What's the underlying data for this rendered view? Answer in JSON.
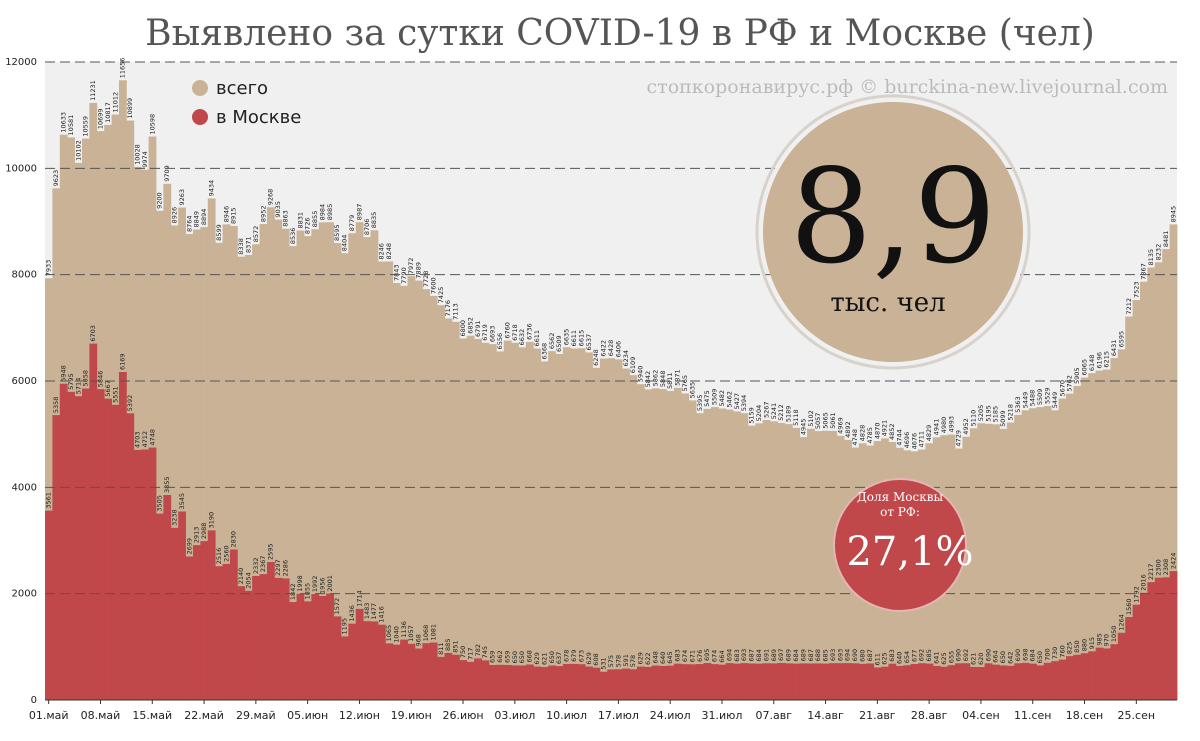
{
  "chart_data": {
    "type": "bar",
    "title": "Выявлено за сутки COVID-19 в РФ и Москве (чел)",
    "watermark": "стопкоронавирус.рф © burckina-new.livejournal.com",
    "categories": [
      "01.май",
      null,
      null,
      null,
      null,
      null,
      null,
      "08.май",
      null,
      null,
      null,
      null,
      null,
      null,
      "15.май",
      null,
      null,
      null,
      null,
      null,
      null,
      "22.май",
      null,
      null,
      null,
      null,
      null,
      null,
      "29.май",
      null,
      null,
      null,
      null,
      null,
      null,
      "05.июн",
      null,
      null,
      null,
      null,
      null,
      null,
      "12.июн",
      null,
      null,
      null,
      null,
      null,
      null,
      "19.июн",
      null,
      null,
      null,
      null,
      null,
      null,
      "26.июн",
      null,
      null,
      null,
      null,
      null,
      null,
      "03.июл",
      null,
      null,
      null,
      null,
      null,
      null,
      "10.июл",
      null,
      null,
      null,
      null,
      null,
      null,
      "17.июл",
      null,
      null,
      null,
      null,
      null,
      null,
      "24.июл",
      null,
      null,
      null,
      null,
      null,
      null,
      "31.июл",
      null,
      null,
      null,
      null,
      null,
      null,
      "07.авг",
      null,
      null,
      null,
      null,
      null,
      null,
      "14.авг",
      null,
      null,
      null,
      null,
      null,
      null,
      "21.авг",
      null,
      null,
      null,
      null,
      null,
      null,
      "28.авг",
      null,
      null,
      null,
      null,
      null,
      null,
      "04.сен",
      null,
      null,
      null,
      null,
      null,
      null,
      "11.сен",
      null,
      null,
      null,
      null,
      null,
      null,
      "18.сен",
      null,
      null,
      null,
      null,
      null,
      null,
      "25.сен",
      null,
      null,
      null,
      null,
      null
    ],
    "series": [
      {
        "name": "всего",
        "color": "#c9b295",
        "values": [
          7933,
          9623,
          10633,
          10581,
          10102,
          10559,
          11231,
          10699,
          10817,
          11012,
          11656,
          10899,
          10028,
          9974,
          10598,
          9200,
          9709,
          8926,
          9263,
          8764,
          8849,
          8894,
          9434,
          8599,
          8946,
          8915,
          8338,
          8371,
          8572,
          8952,
          9268,
          9035,
          8863,
          8536,
          8831,
          8726,
          8855,
          8984,
          8985,
          8595,
          8404,
          8779,
          8987,
          8706,
          8835,
          8246,
          8248,
          7843,
          7790,
          7972,
          7889,
          7728,
          7600,
          7425,
          7176,
          7113,
          6800,
          6852,
          6791,
          6719,
          6693,
          6556,
          6760,
          6718,
          6632,
          6736,
          6611,
          6368,
          6562,
          6509,
          6635,
          6611,
          6615,
          6537,
          6248,
          6422,
          6428,
          6406,
          6234,
          6109,
          5940,
          5842,
          5862,
          5848,
          5811,
          5871,
          5765,
          5635,
          5395,
          5475,
          5509,
          5482,
          5462,
          5427,
          5394,
          5159,
          5204,
          5267,
          5241,
          5212,
          5189,
          5118,
          4945,
          5102,
          5057,
          5065,
          5061,
          4969,
          4892,
          4748,
          4828,
          4785,
          4870,
          4921,
          4852,
          4744,
          4696,
          4676,
          4711,
          4829,
          4941,
          4980,
          4993,
          4729,
          4952,
          5110,
          5205,
          5195,
          5185,
          5099,
          5218,
          5363,
          5449,
          5488,
          5509,
          5529,
          5449,
          5670,
          5762,
          5905,
          6065,
          6148,
          6196,
          6215,
          6431,
          6595,
          7212,
          7523,
          7867,
          8135,
          8232,
          8481,
          8945
        ]
      },
      {
        "name": "в Москве",
        "color": "#c0474a",
        "values": [
          3561,
          5358,
          5948,
          5795,
          5714,
          5858,
          6703,
          5846,
          5667,
          5551,
          6169,
          5392,
          4703,
          4712,
          4748,
          3505,
          3855,
          3238,
          3545,
          2699,
          2913,
          2988,
          3190,
          2516,
          2560,
          2830,
          2140,
          2054,
          2332,
          2367,
          2595,
          2297,
          2286,
          1842,
          1998,
          1855,
          1992,
          1956,
          2001,
          1572,
          1195,
          1436,
          1714,
          1483,
          1477,
          1416,
          1065,
          1040,
          1136,
          1057,
          968,
          1068,
          1081,
          811,
          885,
          851,
          750,
          717,
          782,
          745,
          659,
          662,
          659,
          650,
          650,
          668,
          629,
          621,
          650,
          637,
          678,
          679,
          673,
          629,
          608,
          531,
          575,
          578,
          591,
          578,
          629,
          622,
          648,
          640,
          645,
          683,
          674,
          671,
          676,
          695,
          674,
          664,
          694,
          683,
          693,
          687,
          684,
          691,
          689,
          697,
          689,
          684,
          689,
          687,
          688,
          685,
          693,
          693,
          694,
          690,
          680,
          687,
          611,
          625,
          683,
          640,
          654,
          677,
          692,
          685,
          641,
          625,
          655,
          690,
          692,
          621,
          620,
          690,
          664,
          650,
          642,
          690,
          698,
          684,
          650,
          700,
          730,
          760,
          825,
          850,
          880,
          915,
          985,
          970,
          1050,
          1264,
          1560,
          1792,
          2016,
          2217,
          2300,
          2308,
          2424
        ]
      }
    ],
    "ylim": [
      0,
      12000
    ],
    "yticks": [
      0,
      2000,
      4000,
      6000,
      8000,
      10000,
      12000
    ],
    "grid": true,
    "annotations": [
      {
        "big": "8,9",
        "unit": "тыс. чел"
      },
      {
        "caption": "Доля Москвы от РФ:",
        "big": "27,1%"
      }
    ]
  }
}
